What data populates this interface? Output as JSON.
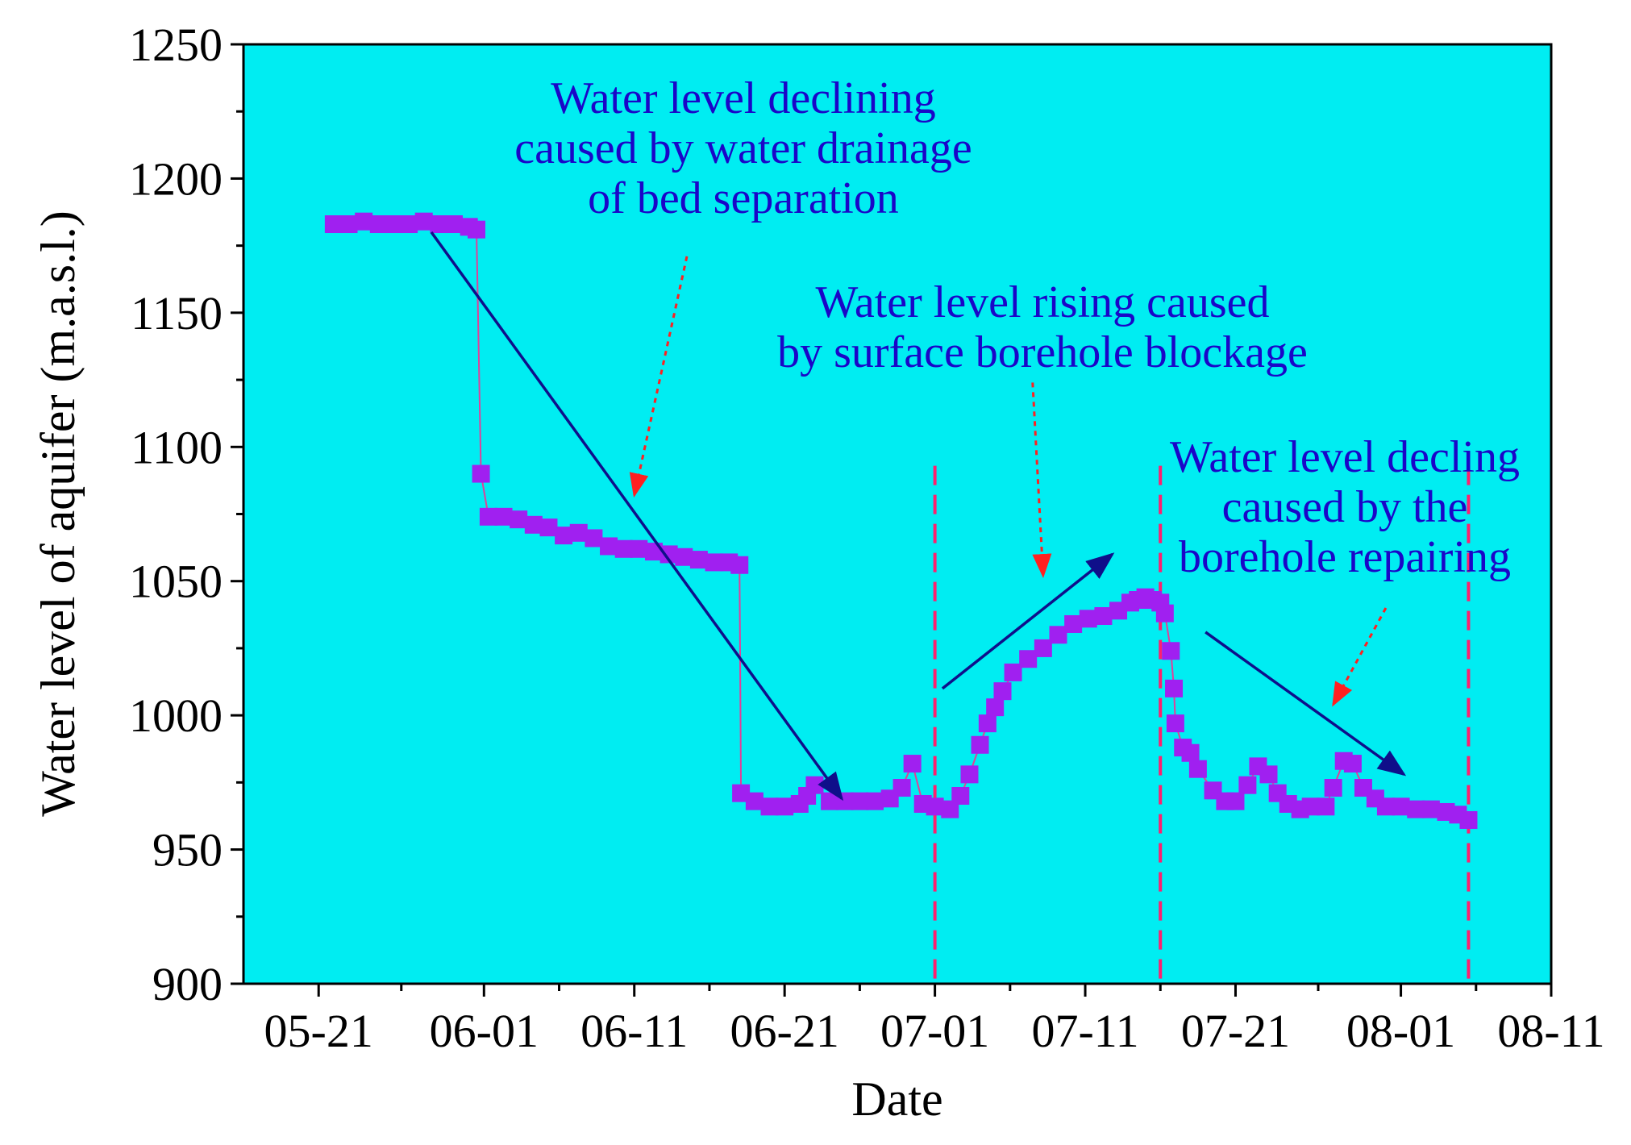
{
  "chart_data": {
    "type": "scatter",
    "title": "",
    "xlabel": "Date",
    "ylabel": "Water level of aquifer (m.a.s.l.)",
    "ylim": [
      900,
      1250
    ],
    "xlim_days": [
      -5,
      82
    ],
    "x_unit": "days since 05-21",
    "x_ticks": [
      {
        "label": "05-21",
        "day": 0
      },
      {
        "label": "06-01",
        "day": 11
      },
      {
        "label": "06-11",
        "day": 21
      },
      {
        "label": "06-21",
        "day": 31
      },
      {
        "label": "07-01",
        "day": 41
      },
      {
        "label": "07-11",
        "day": 51
      },
      {
        "label": "07-21",
        "day": 61
      },
      {
        "label": "08-01",
        "day": 72
      },
      {
        "label": "08-11",
        "day": 82
      }
    ],
    "y_ticks": [
      900,
      950,
      1000,
      1050,
      1100,
      1150,
      1200,
      1250
    ],
    "colors": {
      "plot_bg": "#00edf2",
      "markers": "#a020f0",
      "trend_arrows": "#0f0f8a",
      "annotation_text": "#1a06c8",
      "annotation_arrows": "#ff2020",
      "phase_lines": "#ff1f6e"
    },
    "series": [
      {
        "name": "Water level",
        "points": [
          [
            1.0,
            1183
          ],
          [
            2.0,
            1183
          ],
          [
            3.0,
            1184
          ],
          [
            4.0,
            1183
          ],
          [
            5.0,
            1183
          ],
          [
            6.0,
            1183
          ],
          [
            7.0,
            1184
          ],
          [
            8.0,
            1183
          ],
          [
            9.0,
            1183
          ],
          [
            10.0,
            1182
          ],
          [
            10.5,
            1181
          ],
          [
            10.8,
            1090
          ],
          [
            11.3,
            1074
          ],
          [
            12.3,
            1074
          ],
          [
            13.3,
            1073
          ],
          [
            14.3,
            1071
          ],
          [
            15.3,
            1070
          ],
          [
            16.3,
            1067
          ],
          [
            17.3,
            1068
          ],
          [
            18.3,
            1066
          ],
          [
            19.3,
            1063
          ],
          [
            20.3,
            1062
          ],
          [
            21.3,
            1062
          ],
          [
            22.3,
            1061
          ],
          [
            23.3,
            1060
          ],
          [
            24.3,
            1059
          ],
          [
            25.3,
            1058
          ],
          [
            26.3,
            1057
          ],
          [
            27.3,
            1057
          ],
          [
            28.0,
            1056
          ],
          [
            28.1,
            971
          ],
          [
            29.0,
            968
          ],
          [
            30.0,
            966
          ],
          [
            31.0,
            966
          ],
          [
            32.0,
            967
          ],
          [
            32.5,
            970
          ],
          [
            33.0,
            974
          ],
          [
            34.0,
            968
          ],
          [
            35.0,
            968
          ],
          [
            36.0,
            968
          ],
          [
            37.0,
            968
          ],
          [
            38.0,
            969
          ],
          [
            38.8,
            973
          ],
          [
            39.5,
            982
          ],
          [
            40.2,
            967
          ],
          [
            41.0,
            966
          ],
          [
            42.0,
            965
          ],
          [
            42.7,
            970
          ],
          [
            43.3,
            978
          ],
          [
            44.0,
            989
          ],
          [
            44.5,
            997
          ],
          [
            45.0,
            1003
          ],
          [
            45.5,
            1009
          ],
          [
            46.2,
            1016
          ],
          [
            47.2,
            1021
          ],
          [
            48.2,
            1025
          ],
          [
            49.2,
            1030
          ],
          [
            50.2,
            1034
          ],
          [
            51.2,
            1036
          ],
          [
            52.2,
            1037
          ],
          [
            53.2,
            1039
          ],
          [
            54.0,
            1042
          ],
          [
            54.5,
            1043
          ],
          [
            55.0,
            1044
          ],
          [
            55.5,
            1043
          ],
          [
            56.0,
            1042
          ],
          [
            56.3,
            1038
          ],
          [
            56.7,
            1024
          ],
          [
            56.9,
            1010
          ],
          [
            57.0,
            997
          ],
          [
            57.5,
            988
          ],
          [
            58.0,
            986
          ],
          [
            58.5,
            980
          ],
          [
            59.5,
            972
          ],
          [
            60.3,
            968
          ],
          [
            61.0,
            968
          ],
          [
            61.8,
            974
          ],
          [
            62.5,
            981
          ],
          [
            63.2,
            978
          ],
          [
            63.8,
            971
          ],
          [
            64.5,
            967
          ],
          [
            65.3,
            965
          ],
          [
            66.0,
            966
          ],
          [
            67.0,
            966
          ],
          [
            67.5,
            973
          ],
          [
            68.2,
            983
          ],
          [
            68.8,
            982
          ],
          [
            69.5,
            973
          ],
          [
            70.3,
            969
          ],
          [
            71.0,
            966
          ],
          [
            72.0,
            966
          ],
          [
            73.0,
            965
          ],
          [
            74.0,
            965
          ],
          [
            75.0,
            964
          ],
          [
            75.8,
            963
          ],
          [
            76.5,
            961
          ]
        ]
      }
    ],
    "trend_arrows": [
      {
        "direction": "decline",
        "from": [
          7.5,
          1180
        ],
        "to": [
          34.8,
          969
        ]
      },
      {
        "direction": "rise",
        "from": [
          41.5,
          1010
        ],
        "to": [
          52.8,
          1060
        ]
      },
      {
        "direction": "decline",
        "from": [
          59.0,
          1031
        ],
        "to": [
          72.2,
          978
        ]
      }
    ],
    "phase_lines_day": [
      41,
      56,
      76.5
    ],
    "annotations": [
      {
        "lines": [
          "Water level declining",
          "caused by water drainage",
          "of bed separation"
        ],
        "arrow_from": [
          24.5,
          1171
        ],
        "arrow_to": [
          21.0,
          1082
        ]
      },
      {
        "lines": [
          "Water level rising caused",
          "by surface borehole blockage"
        ],
        "arrow_from": [
          47.5,
          1124
        ],
        "arrow_to": [
          48.2,
          1052
        ]
      },
      {
        "lines": [
          "Water level decling",
          "caused by the",
          "borehole repairing"
        ],
        "arrow_from": [
          71.0,
          1040
        ],
        "arrow_to": [
          67.5,
          1004
        ]
      }
    ]
  }
}
